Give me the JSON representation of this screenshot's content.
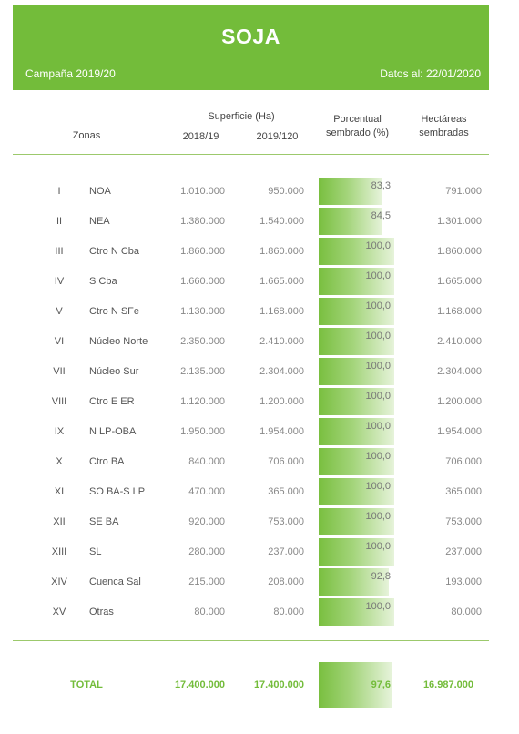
{
  "header": {
    "title": "SOJA",
    "campaign": "Campaña 2019/20",
    "date": "Datos al: 22/01/2020",
    "color": "#73bc3a"
  },
  "columns": {
    "zones": "Zonas",
    "surface": "Superficie (Ha)",
    "year1": "2018/19",
    "year2": "2019/120",
    "pct_line1": "Porcentual",
    "pct_line2": "sembrado (%)",
    "ha_line1": "Hectáreas",
    "ha_line2": "sembradas"
  },
  "rows": [
    {
      "roman": "I",
      "zone": "NOA",
      "s1": "1.010.000",
      "s2": "950.000",
      "pct": "83,3",
      "pct_value": 83.3,
      "ha": "791.000"
    },
    {
      "roman": "II",
      "zone": "NEA",
      "s1": "1.380.000",
      "s2": "1.540.000",
      "pct": "84,5",
      "pct_value": 84.5,
      "ha": "1.301.000"
    },
    {
      "roman": "III",
      "zone": "Ctro N Cba",
      "s1": "1.860.000",
      "s2": "1.860.000",
      "pct": "100,0",
      "pct_value": 100,
      "ha": "1.860.000"
    },
    {
      "roman": "IV",
      "zone": "S Cba",
      "s1": "1.660.000",
      "s2": "1.665.000",
      "pct": "100,0",
      "pct_value": 100,
      "ha": "1.665.000"
    },
    {
      "roman": "V",
      "zone": "Ctro N SFe",
      "s1": "1.130.000",
      "s2": "1.168.000",
      "pct": "100,0",
      "pct_value": 100,
      "ha": "1.168.000"
    },
    {
      "roman": "VI",
      "zone": "Núcleo Norte",
      "s1": "2.350.000",
      "s2": "2.410.000",
      "pct": "100,0",
      "pct_value": 100,
      "ha": "2.410.000"
    },
    {
      "roman": "VII",
      "zone": "Núcleo Sur",
      "s1": "2.135.000",
      "s2": "2.304.000",
      "pct": "100,0",
      "pct_value": 100,
      "ha": "2.304.000"
    },
    {
      "roman": "VIII",
      "zone": "Ctro E ER",
      "s1": "1.120.000",
      "s2": "1.200.000",
      "pct": "100,0",
      "pct_value": 100,
      "ha": "1.200.000"
    },
    {
      "roman": "IX",
      "zone": "N LP-OBA",
      "s1": "1.950.000",
      "s2": "1.954.000",
      "pct": "100,0",
      "pct_value": 100,
      "ha": "1.954.000"
    },
    {
      "roman": "X",
      "zone": "Ctro BA",
      "s1": "840.000",
      "s2": "706.000",
      "pct": "100,0",
      "pct_value": 100,
      "ha": "706.000"
    },
    {
      "roman": "XI",
      "zone": "SO BA-S LP",
      "s1": "470.000",
      "s2": "365.000",
      "pct": "100,0",
      "pct_value": 100,
      "ha": "365.000"
    },
    {
      "roman": "XII",
      "zone": "SE BA",
      "s1": "920.000",
      "s2": "753.000",
      "pct": "100,0",
      "pct_value": 100,
      "ha": "753.000"
    },
    {
      "roman": "XIII",
      "zone": "SL",
      "s1": "280.000",
      "s2": "237.000",
      "pct": "100,0",
      "pct_value": 100,
      "ha": "237.000"
    },
    {
      "roman": "XIV",
      "zone": "Cuenca Sal",
      "s1": "215.000",
      "s2": "208.000",
      "pct": "92,8",
      "pct_value": 92.8,
      "ha": "193.000"
    },
    {
      "roman": "XV",
      "zone": "Otras",
      "s1": "80.000",
      "s2": "80.000",
      "pct": "100,0",
      "pct_value": 100,
      "ha": "80.000"
    }
  ],
  "total": {
    "label": "TOTAL",
    "s1": "17.400.000",
    "s2": "17.400.000",
    "pct": "97,6",
    "pct_value": 97.6,
    "ha": "16.987.000"
  }
}
